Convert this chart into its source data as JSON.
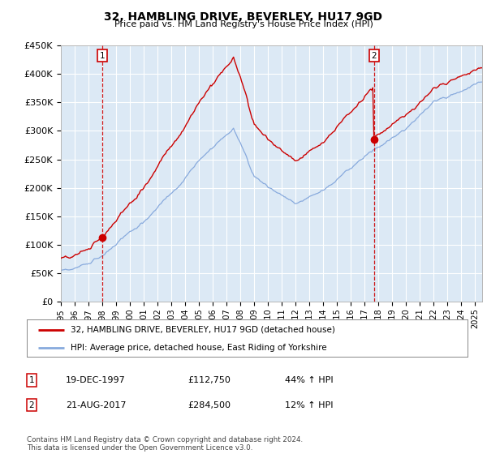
{
  "title": "32, HAMBLING DRIVE, BEVERLEY, HU17 9GD",
  "subtitle": "Price paid vs. HM Land Registry's House Price Index (HPI)",
  "price_color": "#cc0000",
  "hpi_color": "#88aadd",
  "marker_color": "#cc0000",
  "dashed_line_color": "#cc0000",
  "sale1_year": 1997.96,
  "sale1_price": 112750,
  "sale1_label": "1",
  "sale2_year": 2017.64,
  "sale2_price": 284500,
  "sale2_label": "2",
  "legend_price_label": "32, HAMBLING DRIVE, BEVERLEY, HU17 9GD (detached house)",
  "legend_hpi_label": "HPI: Average price, detached house, East Riding of Yorkshire",
  "table_row1": [
    "1",
    "19-DEC-1997",
    "£112,750",
    "44% ↑ HPI"
  ],
  "table_row2": [
    "2",
    "21-AUG-2017",
    "£284,500",
    "12% ↑ HPI"
  ],
  "footer": "Contains HM Land Registry data © Crown copyright and database right 2024.\nThis data is licensed under the Open Government Licence v3.0.",
  "background_color": "#ffffff",
  "plot_bg_color": "#dce9f5",
  "grid_color": "#ffffff"
}
